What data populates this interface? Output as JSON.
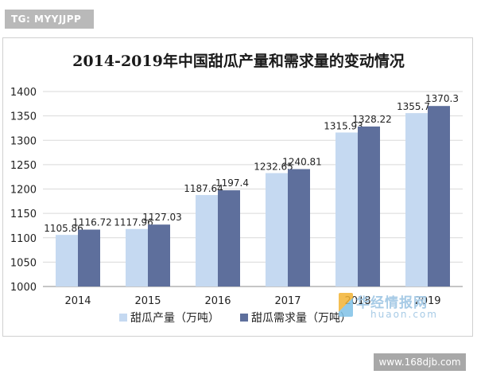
{
  "watermark_top": "TG: MYYJJPP",
  "watermark_site": "www.168djb.com",
  "watermark_brand": {
    "name": "华经情报网",
    "url": "huaon.com"
  },
  "chart_data": {
    "type": "bar",
    "title": "2014-2019年中国甜瓜产量和需求量的变动情况",
    "xlabel": "",
    "ylabel": "",
    "categories": [
      "2014",
      "2015",
      "2016",
      "2017",
      "2018",
      "2019"
    ],
    "series": [
      {
        "name": "甜瓜产量（万吨）",
        "color": "#c5d9f1",
        "values": [
          1105.86,
          1117.96,
          1187.64,
          1232.65,
          1315.93,
          1355.7
        ]
      },
      {
        "name": "甜瓜需求量（万吨）",
        "color": "#5e6f9c",
        "values": [
          1116.72,
          1127.03,
          1197.4,
          1240.81,
          1328.22,
          1370.3
        ]
      }
    ],
    "ylim": [
      1000,
      1400
    ],
    "yticks": [
      1000,
      1050,
      1100,
      1150,
      1200,
      1250,
      1300,
      1350,
      1400
    ],
    "grid": true,
    "legend": "bottom"
  }
}
